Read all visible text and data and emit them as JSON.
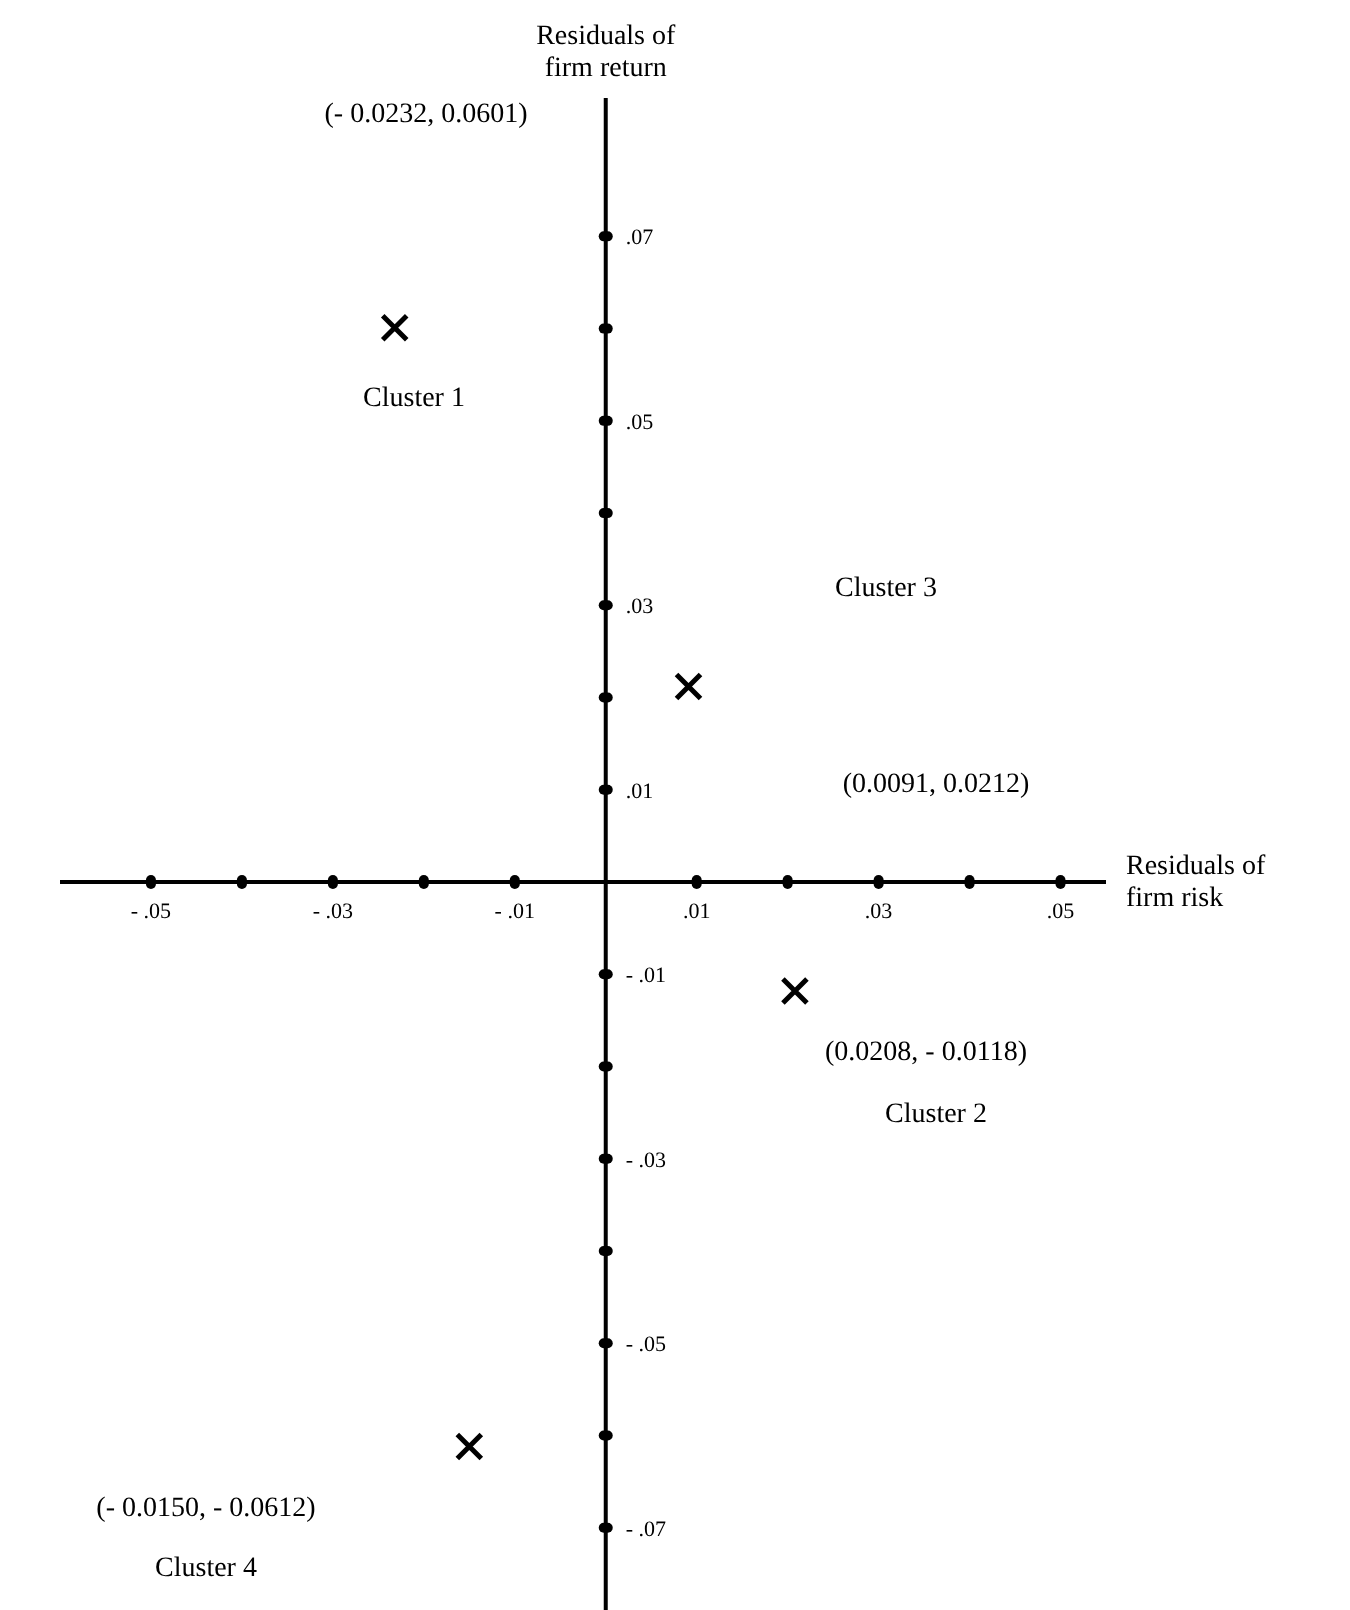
{
  "chart_data": {
    "type": "scatter",
    "xlabel": "Residuals of firm risk",
    "ylabel": "Residuals of firm return",
    "x": [
      -0.0232,
      0.0091,
      0.0208,
      -0.015
    ],
    "series": [
      {
        "color": "#000000",
        "values": [
          0.0601,
          0.0212,
          -0.0118,
          -0.0612
        ]
      }
    ],
    "marker": "cross",
    "xlim": [
      -0.06,
      0.055
    ],
    "ylim": [
      -0.08,
      0.085
    ],
    "xticks": [
      {
        "value": -0.05,
        "label": "- .05"
      },
      {
        "value": -0.04,
        "label": null
      },
      {
        "value": -0.03,
        "label": "- .03"
      },
      {
        "value": -0.02,
        "label": null
      },
      {
        "value": -0.01,
        "label": "- .01"
      },
      {
        "value": 0.01,
        "label": ".01"
      },
      {
        "value": 0.02,
        "label": null
      },
      {
        "value": 0.03,
        "label": ".03"
      },
      {
        "value": 0.04,
        "label": null
      },
      {
        "value": 0.05,
        "label": ".05"
      }
    ],
    "yticks": [
      {
        "value": 0.07,
        "label": ".07"
      },
      {
        "value": 0.06,
        "label": null
      },
      {
        "value": 0.05,
        "label": ".05"
      },
      {
        "value": 0.04,
        "label": null
      },
      {
        "value": 0.03,
        "label": ".03"
      },
      {
        "value": 0.02,
        "label": null
      },
      {
        "value": 0.01,
        "label": ".01"
      },
      {
        "value": -0.01,
        "label": "- .01"
      },
      {
        "value": -0.02,
        "label": null
      },
      {
        "value": -0.03,
        "label": "- .03"
      },
      {
        "value": -0.04,
        "label": null
      },
      {
        "value": -0.05,
        "label": "- .05"
      },
      {
        "value": -0.06,
        "label": null
      },
      {
        "value": -0.07,
        "label": "- .07"
      }
    ],
    "annotations": [
      "(- 0.0232, 0.0601)",
      "Cluster 1",
      "Cluster 3",
      "(0.0091, 0.0212)",
      "(0.0208, - 0.0118)",
      "Cluster 2",
      "(- 0.0150, - 0.0612)",
      "Cluster 4"
    ]
  }
}
